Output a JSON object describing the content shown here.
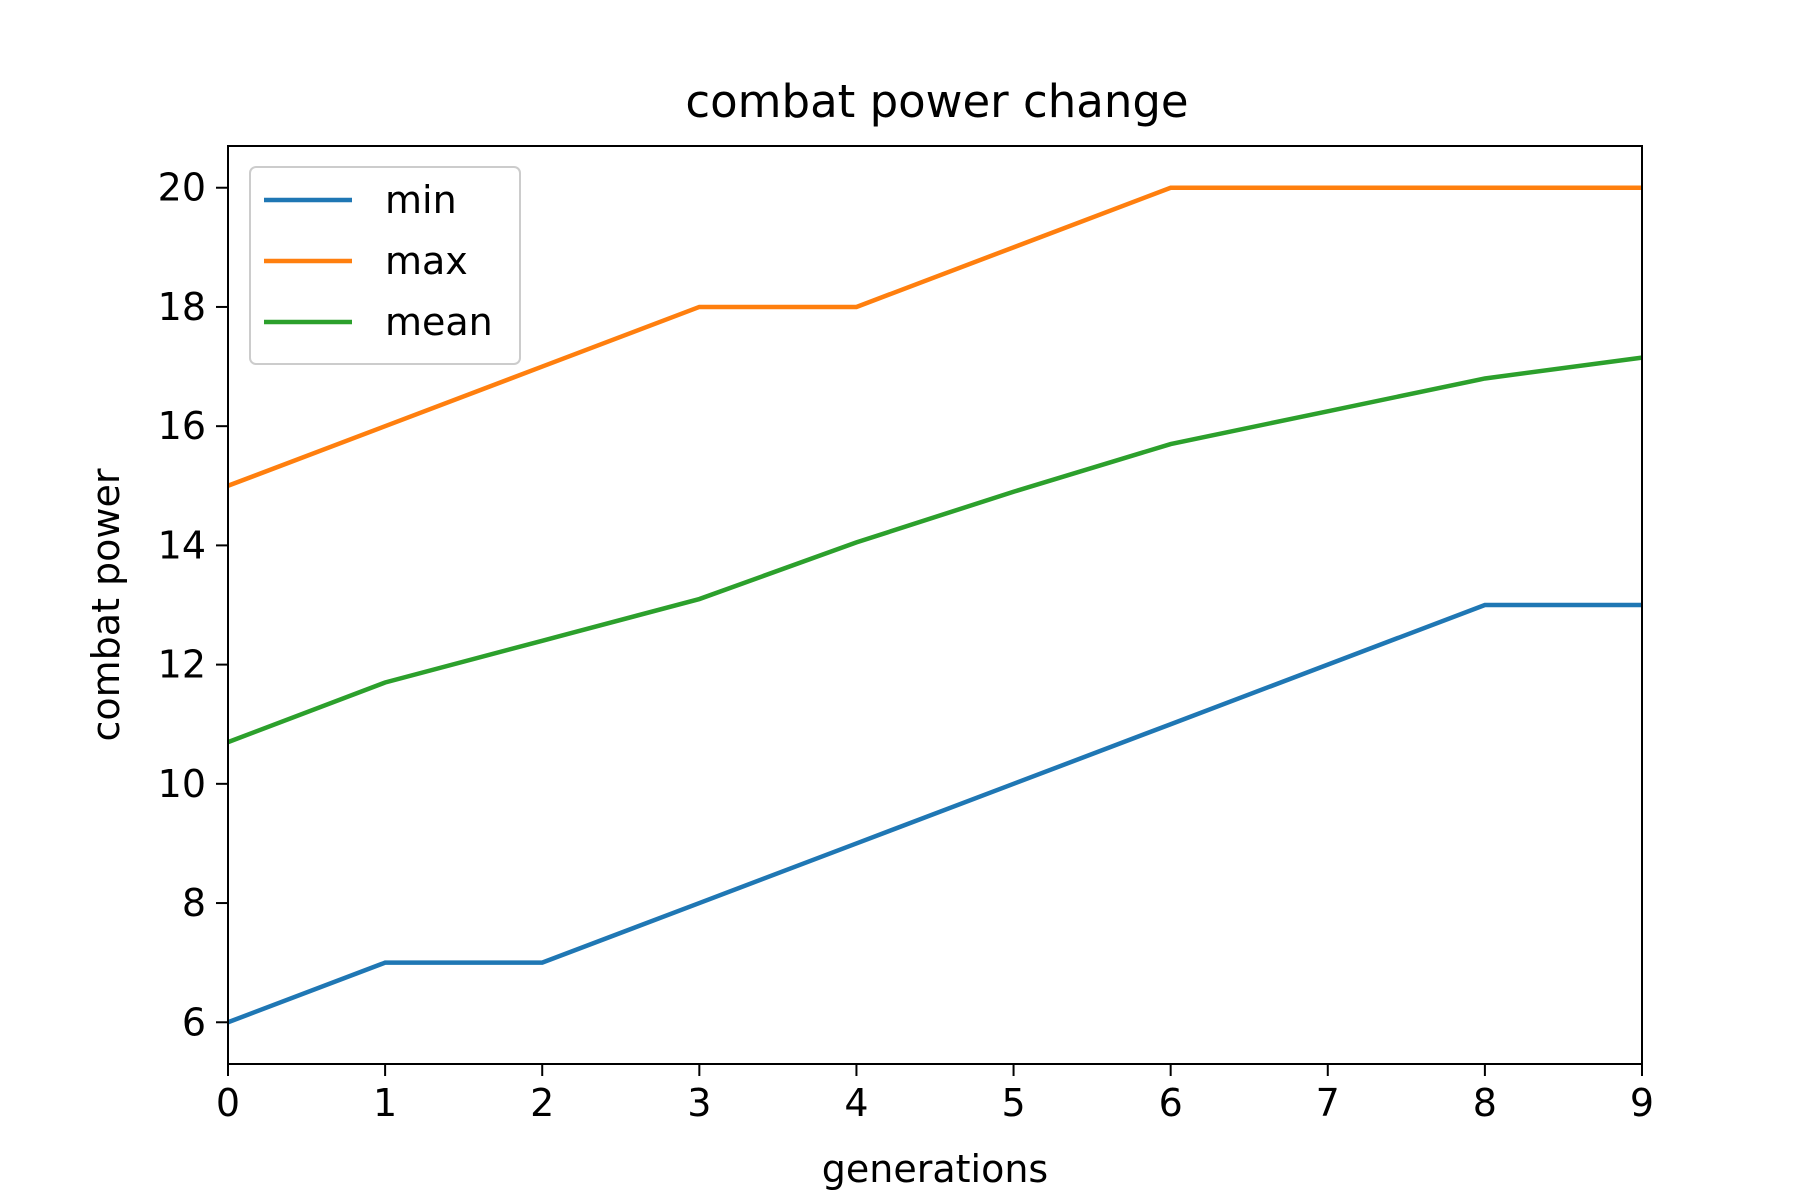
{
  "chart_data": {
    "type": "line",
    "title": "combat power change",
    "xlabel": "generations",
    "ylabel": "combat power",
    "x": [
      0,
      1,
      2,
      3,
      4,
      5,
      6,
      7,
      8,
      9
    ],
    "xlim": [
      0,
      9
    ],
    "ylim": [
      5.3,
      20.7
    ],
    "xticks": [
      0,
      1,
      2,
      3,
      4,
      5,
      6,
      7,
      8,
      9
    ],
    "yticks": [
      6,
      8,
      10,
      12,
      14,
      16,
      18,
      20
    ],
    "xtick_labels": [
      "0",
      "1",
      "2",
      "3",
      "4",
      "5",
      "6",
      "7",
      "8",
      "9"
    ],
    "ytick_labels": [
      "6",
      "8",
      "10",
      "12",
      "14",
      "16",
      "18",
      "20"
    ],
    "grid": false,
    "legend_position": "top-left",
    "series": [
      {
        "name": "min",
        "color": "#1f77b4",
        "values": [
          6,
          7,
          7,
          8,
          9,
          10,
          11,
          12,
          13,
          13
        ]
      },
      {
        "name": "max",
        "color": "#ff7f0e",
        "values": [
          15,
          16,
          17,
          18,
          18,
          19,
          20,
          20,
          20,
          20
        ]
      },
      {
        "name": "mean",
        "color": "#2ca02c",
        "values": [
          10.7,
          11.7,
          12.4,
          13.1,
          14.05,
          14.9,
          15.7,
          16.25,
          16.8,
          17.15
        ]
      }
    ]
  }
}
